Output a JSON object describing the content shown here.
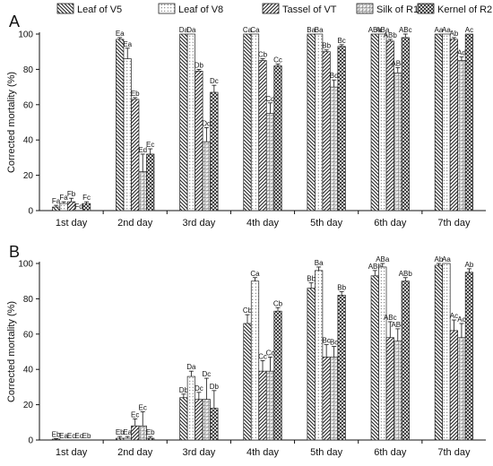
{
  "legend": {
    "entries": [
      {
        "name": "Leaf of V5",
        "pattern": "hatch-back"
      },
      {
        "name": "Leaf of V8",
        "pattern": "dots"
      },
      {
        "name": "Tassel of VT",
        "pattern": "hatch-fwd"
      },
      {
        "name": "Silk of R1",
        "pattern": "grid"
      },
      {
        "name": "Kernel of R2",
        "pattern": "cross"
      }
    ]
  },
  "chart_data": [
    {
      "type": "bar",
      "panel_label": "A",
      "ylabel": "Corrected mortality (%)",
      "ylim": [
        0,
        100
      ],
      "yticks": [
        0,
        20,
        40,
        60,
        80,
        100
      ],
      "categories": [
        "1st day",
        "2nd day",
        "3rd day",
        "4th day",
        "5th day",
        "6th day",
        "7th day"
      ],
      "series": [
        {
          "name": "Leaf of V5",
          "values": [
            2,
            97,
            100,
            100,
            100,
            100,
            100
          ],
          "errors": [
            1,
            1,
            0,
            0,
            0,
            0,
            0
          ],
          "labels": [
            "Fa",
            "Ea",
            "Da",
            "Ca",
            "Ba",
            "ABa",
            "Aa"
          ]
        },
        {
          "name": "Leaf of V8",
          "values": [
            4,
            86,
            100,
            100,
            100,
            100,
            100
          ],
          "errors": [
            1,
            6,
            0,
            0,
            0,
            0,
            0
          ],
          "labels": [
            "Fa",
            "Ea",
            "Da",
            "Ca",
            "Ba",
            "ABa",
            "Aa"
          ]
        },
        {
          "name": "Tassel of VT",
          "values": [
            5,
            63,
            79,
            85,
            90,
            96,
            97
          ],
          "errors": [
            2,
            1,
            1,
            1,
            1,
            1,
            1
          ],
          "labels": [
            "Fb",
            "Eb",
            "Db",
            "Cb",
            "Bb",
            "ABb",
            "Ab"
          ]
        },
        {
          "name": "Silk of R1",
          "values": [
            0,
            22,
            39,
            55,
            70,
            78,
            85
          ],
          "errors": [
            0,
            10,
            8,
            6,
            4,
            3,
            2
          ],
          "labels": [
            "Fd",
            "Ed",
            "Dd",
            "Cd",
            "Bd",
            "ABc",
            "Ad"
          ]
        },
        {
          "name": "Kernel of R2",
          "values": [
            4,
            32,
            67,
            82,
            93,
            98,
            100
          ],
          "errors": [
            1,
            3,
            4,
            1,
            1,
            2,
            0
          ],
          "labels": [
            "Fc",
            "Ec",
            "Dc",
            "Cc",
            "Bc",
            "ABc",
            "Ac"
          ]
        }
      ]
    },
    {
      "type": "bar",
      "panel_label": "B",
      "ylabel": "Corrected mortality (%)",
      "ylim": [
        0,
        100
      ],
      "yticks": [
        0,
        20,
        40,
        60,
        80,
        100
      ],
      "categories": [
        "1st day",
        "2nd day",
        "3rd day",
        "4th day",
        "5th day",
        "6th day",
        "7th day"
      ],
      "series": [
        {
          "name": "Leaf of V5",
          "values": [
            0.5,
            1,
            24,
            66,
            86,
            93,
            99
          ],
          "errors": [
            0.3,
            1,
            2,
            5,
            3,
            3,
            1
          ],
          "labels": [
            "Eb",
            "Eb",
            "Db",
            "Cb",
            "Bb",
            "ABb",
            "Ab"
          ]
        },
        {
          "name": "Leaf of V8",
          "values": [
            0,
            1,
            36,
            90,
            96,
            98,
            100
          ],
          "errors": [
            0,
            1,
            3,
            2,
            2,
            2,
            0
          ],
          "labels": [
            "Ea",
            "Ea",
            "Da",
            "Ca",
            "Ba",
            "ABa",
            "Aa"
          ]
        },
        {
          "name": "Tassel of VT",
          "values": [
            0,
            8,
            23,
            39,
            47,
            58,
            62
          ],
          "errors": [
            0,
            4,
            4,
            6,
            7,
            9,
            6
          ],
          "labels": [
            "Ec",
            "Ec",
            "Dc",
            "Cc",
            "Bc",
            "ABc",
            "Ac"
          ]
        },
        {
          "name": "Silk of R1",
          "values": [
            0,
            8,
            23,
            39,
            47,
            56,
            58
          ],
          "errors": [
            0,
            8,
            12,
            8,
            6,
            7,
            8
          ],
          "labels": [
            "Ec",
            "Ec",
            "Dc",
            "Cc",
            "Bc",
            "ABc",
            "Ac"
          ]
        },
        {
          "name": "Kernel of R2",
          "values": [
            0,
            1,
            18,
            73,
            82,
            90,
            95
          ],
          "errors": [
            0,
            1,
            10,
            2,
            2,
            2,
            2
          ],
          "labels": [
            "Eb",
            "Eb",
            "Db",
            "Cb",
            "Bb",
            "ABb",
            "Ab"
          ]
        }
      ]
    }
  ]
}
